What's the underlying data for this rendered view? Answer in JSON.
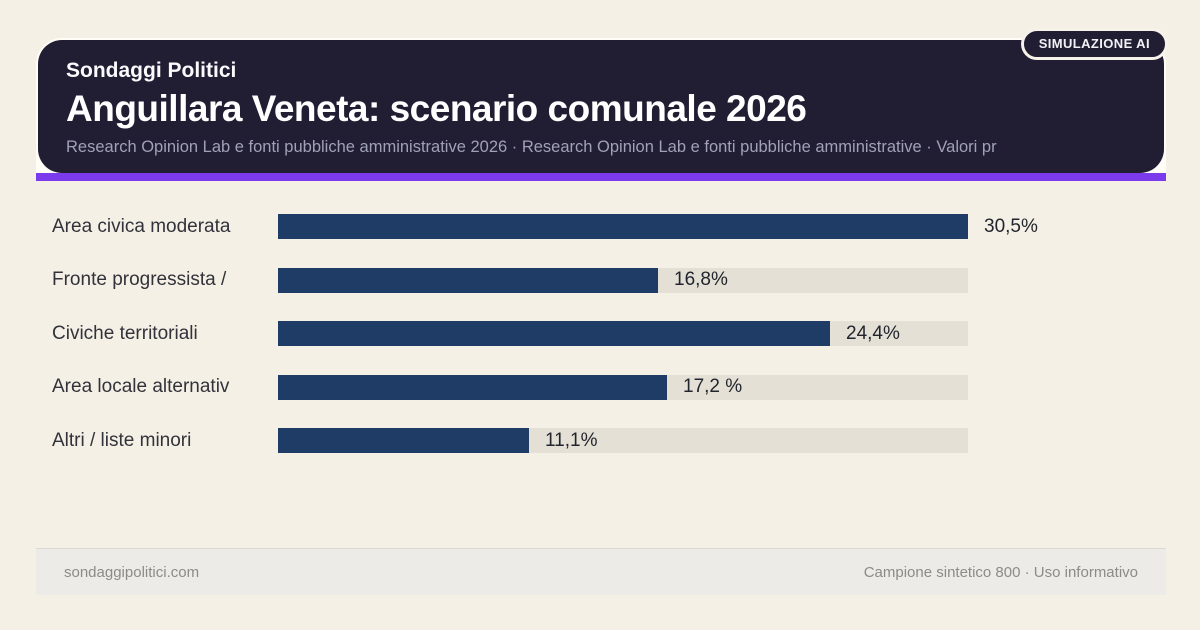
{
  "badge": {
    "label": "SIMULAZIONE AI"
  },
  "header": {
    "kicker": "Sondaggi Politici",
    "title": "Anguillara Veneta: scenario comunale 2026",
    "subtitle": "Research Opinion Lab e fonti pubbliche amministrative 2026 · Research Opinion Lab e fonti pubbliche amministrative · Valori pr"
  },
  "chart_data": {
    "type": "bar",
    "orientation": "horizontal",
    "title": "Anguillara Veneta: scenario comunale 2026",
    "categories": [
      "Area civica moderata",
      "Fronte progressista /",
      "Civiche territoriali",
      "Area locale alternativ",
      "Altri / liste minori"
    ],
    "values": [
      30.5,
      16.8,
      24.4,
      17.2,
      11.1
    ],
    "value_labels": [
      "30,5%",
      "16,8%",
      "24,4%",
      "17,2 %",
      "11,1%"
    ],
    "unit": "%",
    "xlim": [
      0,
      30.5
    ],
    "grid": false,
    "legend": "none",
    "bar_color": "#1f3c66",
    "track_color": "#e4e0d6"
  },
  "footer": {
    "left": "sondaggipolitici.com",
    "right": "Campione sintetico 800 · Uso informativo"
  },
  "colors": {
    "background": "#f5f0e6",
    "header_bg": "#211e33",
    "accent": "#7c3aed",
    "card": "#fffdf6",
    "bar": "#1f3c66",
    "track": "#e4e0d6"
  }
}
